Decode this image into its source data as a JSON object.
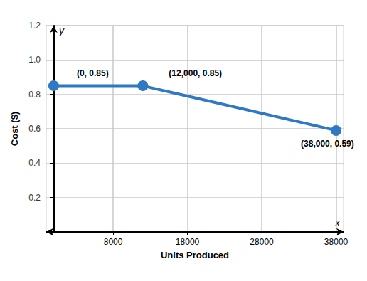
{
  "chart_data": {
    "type": "line",
    "x_label": "Units Produced",
    "y_label": "Cost ($)",
    "x_axis_letter": "x",
    "y_axis_letter": "y",
    "x": [
      0,
      12000,
      38000
    ],
    "values": [
      0.85,
      0.85,
      0.59
    ],
    "value_labels": [
      "(0, 0.85)",
      "(12,000, 0.85)",
      "(38,000, 0.59)"
    ],
    "data_labels": true,
    "color": "#2f78c4",
    "marker": "circle",
    "xlim": [
      -1000,
      39000
    ],
    "xticks": [
      8000,
      18000,
      28000,
      38000
    ],
    "ylim": [
      0,
      1.2
    ],
    "yticks": [
      0.2,
      0.4,
      0.6,
      0.8,
      {
        "value": 1,
        "label": "1.0"
      },
      1.2
    ],
    "grid": true
  }
}
